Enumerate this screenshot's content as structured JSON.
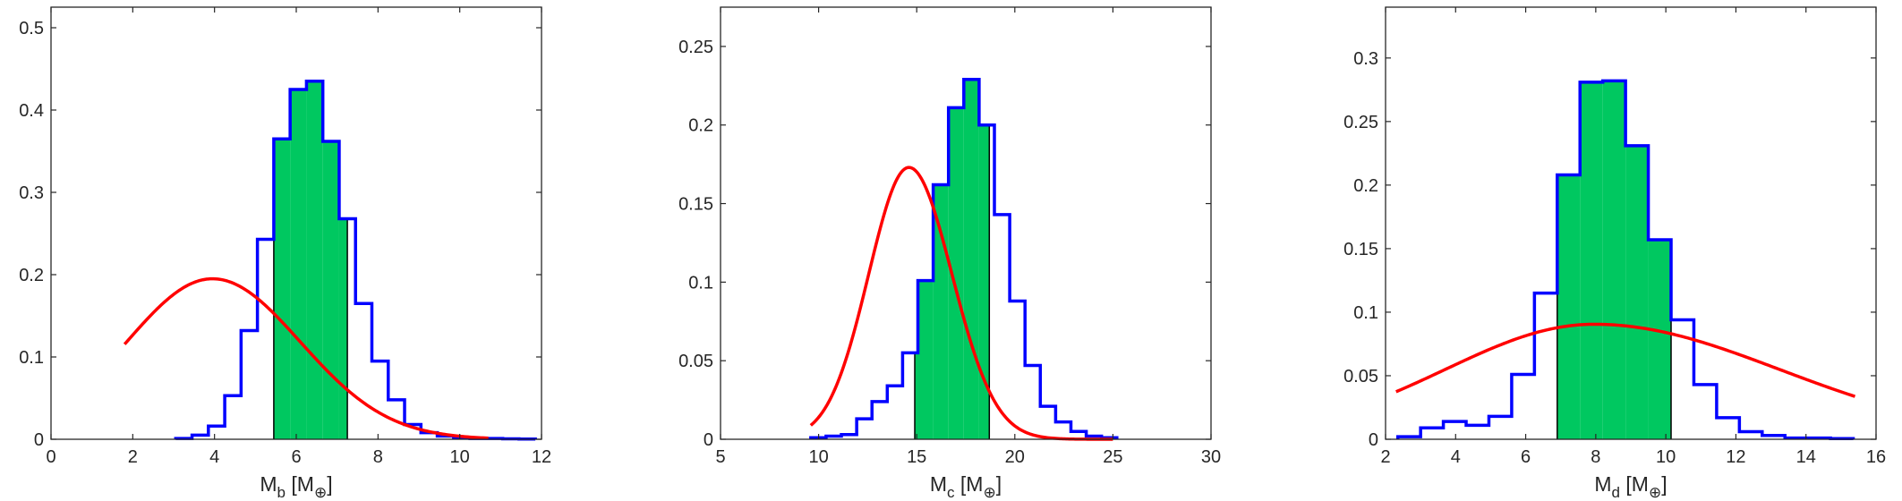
{
  "chart_data": [
    {
      "type": "bar",
      "xlabel": {
        "main": "M",
        "sub": "b",
        "unit": "[M",
        "unit_sub": "⊕",
        "close": "]"
      },
      "xlim": [
        0,
        12
      ],
      "ylim": [
        0,
        0.525
      ],
      "xticks": [
        "0",
        "2",
        "4",
        "6",
        "8",
        "10",
        "12"
      ],
      "yticks": [
        "0",
        "0.1",
        "0.2",
        "0.3",
        "0.4",
        "0.5"
      ],
      "xtick_values": [
        0,
        2,
        4,
        6,
        8,
        10,
        12
      ],
      "ytick_values": [
        0,
        0.1,
        0.2,
        0.3,
        0.4,
        0.5
      ],
      "histogram": {
        "bin_start": 3.05,
        "bin_width": 0.4,
        "values": [
          0.001,
          0.005,
          0.016,
          0.053,
          0.132,
          0.243,
          0.365,
          0.425,
          0.435,
          0.362,
          0.268,
          0.165,
          0.095,
          0.048,
          0.018,
          0.008,
          0.004,
          0.002,
          0.001,
          0.001,
          0.0005,
          0.0003
        ],
        "highlight_range": [
          5.45,
          7.25
        ]
      },
      "curve": {
        "kind": "skewed",
        "x_start": 1.8,
        "x_end": 10.7,
        "peak_x": 3.95,
        "peak_y": 0.195,
        "sigma_left": 2.1,
        "sigma_right": 2.15
      },
      "colors": {
        "histogram": "#0000ff",
        "highlight": "#00c860",
        "curve": "#ff0000"
      }
    },
    {
      "type": "bar",
      "xlabel": {
        "main": "M",
        "sub": "c",
        "unit": "[M",
        "unit_sub": "⊕",
        "close": "]"
      },
      "xlim": [
        5,
        30
      ],
      "ylim": [
        0,
        0.275
      ],
      "xticks": [
        "5",
        "10",
        "15",
        "20",
        "25",
        "30"
      ],
      "yticks": [
        "0",
        "0.05",
        "0.1",
        "0.15",
        "0.2",
        "0.25"
      ],
      "xtick_values": [
        5,
        10,
        15,
        20,
        25,
        30
      ],
      "ytick_values": [
        0,
        0.05,
        0.1,
        0.15,
        0.2,
        0.25
      ],
      "histogram": {
        "bin_start": 9.6,
        "bin_width": 0.78,
        "values": [
          0.001,
          0.002,
          0.003,
          0.013,
          0.024,
          0.034,
          0.055,
          0.101,
          0.162,
          0.211,
          0.229,
          0.2,
          0.143,
          0.088,
          0.047,
          0.021,
          0.011,
          0.005,
          0.002,
          0.001
        ],
        "highlight_range": [
          14.9,
          18.7
        ]
      },
      "curve": {
        "kind": "skewed",
        "x_start": 9.6,
        "x_end": 25.0,
        "peak_x": 14.6,
        "peak_y": 0.173,
        "sigma_left": 2.05,
        "sigma_right": 2.2
      },
      "colors": {
        "histogram": "#0000ff",
        "highlight": "#00c860",
        "curve": "#ff0000"
      }
    },
    {
      "type": "bar",
      "xlabel": {
        "main": "M",
        "sub": "d",
        "unit": "[M",
        "unit_sub": "⊕",
        "close": "]"
      },
      "xlim": [
        2,
        16
      ],
      "ylim": [
        0,
        0.34
      ],
      "xticks": [
        "2",
        "4",
        "6",
        "8",
        "10",
        "12",
        "14",
        "16"
      ],
      "yticks": [
        "0",
        "0.05",
        "0.1",
        "0.15",
        "0.2",
        "0.25",
        "0.3"
      ],
      "xtick_values": [
        2,
        4,
        6,
        8,
        10,
        12,
        14,
        16
      ],
      "ytick_values": [
        0,
        0.05,
        0.1,
        0.15,
        0.2,
        0.25,
        0.3
      ],
      "histogram": {
        "bin_start": 2.35,
        "bin_width": 0.65,
        "values": [
          0.002,
          0.009,
          0.014,
          0.011,
          0.018,
          0.051,
          0.115,
          0.208,
          0.281,
          0.282,
          0.231,
          0.157,
          0.094,
          0.043,
          0.017,
          0.006,
          0.003,
          0.001,
          0.001,
          0.0005
        ],
        "highlight_range": [
          6.9,
          10.15
        ]
      },
      "curve": {
        "kind": "skewed",
        "x_start": 2.3,
        "x_end": 15.4,
        "peak_x": 7.95,
        "peak_y": 0.0905,
        "sigma_left": 4.25,
        "sigma_right": 5.3
      },
      "colors": {
        "histogram": "#0000ff",
        "highlight": "#00c860",
        "curve": "#ff0000"
      }
    }
  ]
}
